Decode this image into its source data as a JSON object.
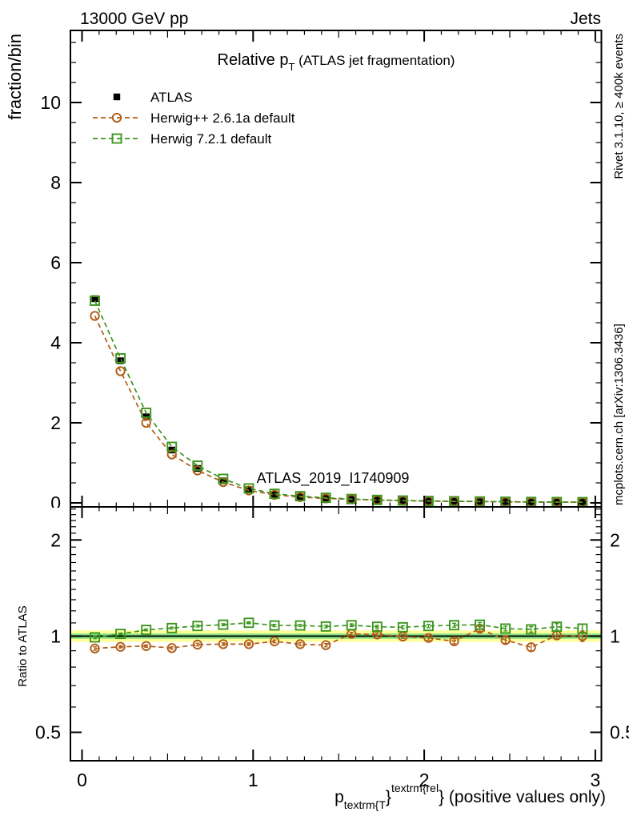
{
  "header": {
    "left": "13000 GeV pp",
    "right": "Jets"
  },
  "panel_title": {
    "main": "Relative p",
    "sub": "T",
    "rest": " (ATLAS jet fragmentation)"
  },
  "watermark": "ATLAS_2019_I1740909",
  "side_notes": {
    "top": "Rivet 3.1.10, ≥ 400k events",
    "bottom": "mcplots.cern.ch [arXiv:1306.3436]"
  },
  "axes": {
    "y_main_label": "fraction/bin",
    "y_ratio_label": "Ratio to ATLAS",
    "x_title": {
      "p": "p",
      "sub": "textrm{T",
      "brace": "}",
      "sup": "textrm{rel",
      "rest": "} (positive values only)"
    }
  },
  "legend": [
    {
      "label": "ATLAS",
      "marker": "filled-square",
      "color": "#000000"
    },
    {
      "label": "Herwig++ 2.6.1a default",
      "marker": "open-circle",
      "color": "#b05c16"
    },
    {
      "label": "Herwig 7.2.1 default",
      "marker": "open-square",
      "color": "#3c961e"
    }
  ],
  "chart_data": {
    "type": "line",
    "title": "Relative pT (ATLAS jet fragmentation)",
    "xlabel": "pT^{rel} (positive values only)",
    "ylabel": "fraction/bin",
    "ylabel_ratio": "Ratio to ATLAS",
    "bin_width": 0.15,
    "x": [
      0.075,
      0.225,
      0.375,
      0.525,
      0.675,
      0.825,
      0.975,
      1.125,
      1.275,
      1.425,
      1.575,
      1.725,
      1.875,
      2.025,
      2.175,
      2.325,
      2.475,
      2.625,
      2.775,
      2.925
    ],
    "xlim": [
      -0.07,
      3.05
    ],
    "xticks": [
      0,
      1,
      2,
      3
    ],
    "x_minor_step": 0.1,
    "x_mid_step": 0.5,
    "main": {
      "scale": "linear",
      "ylim": [
        0,
        11.8
      ],
      "yticks": [
        0,
        2,
        4,
        6,
        8,
        10
      ],
      "y_minor_step": 0.5,
      "series": [
        {
          "name": "ATLAS",
          "marker": "filled-square",
          "color": "#000000",
          "line": "none",
          "values": [
            5.1,
            3.55,
            2.15,
            1.32,
            0.86,
            0.55,
            0.33,
            0.21,
            0.155,
            0.118,
            0.09,
            0.07,
            0.055,
            0.045,
            0.038,
            0.032,
            0.027,
            0.023,
            0.02,
            0.018
          ]
        },
        {
          "name": "Herwig++ 2.6.1a default",
          "marker": "open-circle",
          "color": "#b05c16",
          "line": "dashed",
          "values": [
            4.67,
            3.29,
            2.0,
            1.21,
            0.81,
            0.52,
            0.311,
            0.202,
            0.146,
            0.111,
            0.091,
            0.071,
            0.055,
            0.044,
            0.037,
            0.034,
            0.026,
            0.021,
            0.02,
            0.018
          ]
        },
        {
          "name": "Herwig 7.2.1 default",
          "marker": "open-square",
          "color": "#3c961e",
          "line": "dashed",
          "values": [
            5.05,
            3.61,
            2.25,
            1.4,
            0.93,
            0.6,
            0.363,
            0.227,
            0.167,
            0.127,
            0.097,
            0.075,
            0.059,
            0.048,
            0.041,
            0.035,
            0.029,
            0.024,
            0.021,
            0.019
          ]
        }
      ]
    },
    "ratio": {
      "scale": "log",
      "ylim": [
        0.4,
        2.6
      ],
      "yticks": [
        0.5,
        1,
        2
      ],
      "reference_line": 1,
      "bands": [
        {
          "lo": 0.96,
          "hi": 1.042,
          "color": "#ffff99"
        },
        {
          "lo": 0.981,
          "hi": 1.019,
          "color": "#86e086"
        }
      ],
      "series": [
        {
          "name": "Herwig++ 2.6.1a default",
          "marker": "open-circle",
          "color": "#b05c16",
          "line": "dashed",
          "values": [
            0.915,
            0.926,
            0.931,
            0.918,
            0.941,
            0.944,
            0.944,
            0.963,
            0.944,
            0.937,
            1.016,
            1.012,
            0.997,
            0.987,
            0.964,
            1.055,
            0.972,
            0.923,
            1.006,
            1.0
          ],
          "errors": [
            0.012,
            0.008,
            0.008,
            0.008,
            0.009,
            0.009,
            0.01,
            0.01,
            0.011,
            0.011,
            0.012,
            0.013,
            0.014,
            0.016,
            0.018,
            0.02,
            0.022,
            0.026,
            0.03,
            0.038
          ]
        },
        {
          "name": "Herwig 7.2.1 default",
          "marker": "open-square",
          "color": "#3c961e",
          "line": "dashed",
          "values": [
            0.991,
            1.016,
            1.046,
            1.06,
            1.076,
            1.086,
            1.101,
            1.08,
            1.08,
            1.072,
            1.082,
            1.07,
            1.066,
            1.076,
            1.082,
            1.086,
            1.056,
            1.05,
            1.07,
            1.056
          ],
          "errors": [
            0.01,
            0.007,
            0.007,
            0.007,
            0.008,
            0.008,
            0.008,
            0.009,
            0.009,
            0.01,
            0.011,
            0.011,
            0.012,
            0.013,
            0.015,
            0.017,
            0.018,
            0.021,
            0.025,
            0.032
          ]
        }
      ]
    }
  }
}
